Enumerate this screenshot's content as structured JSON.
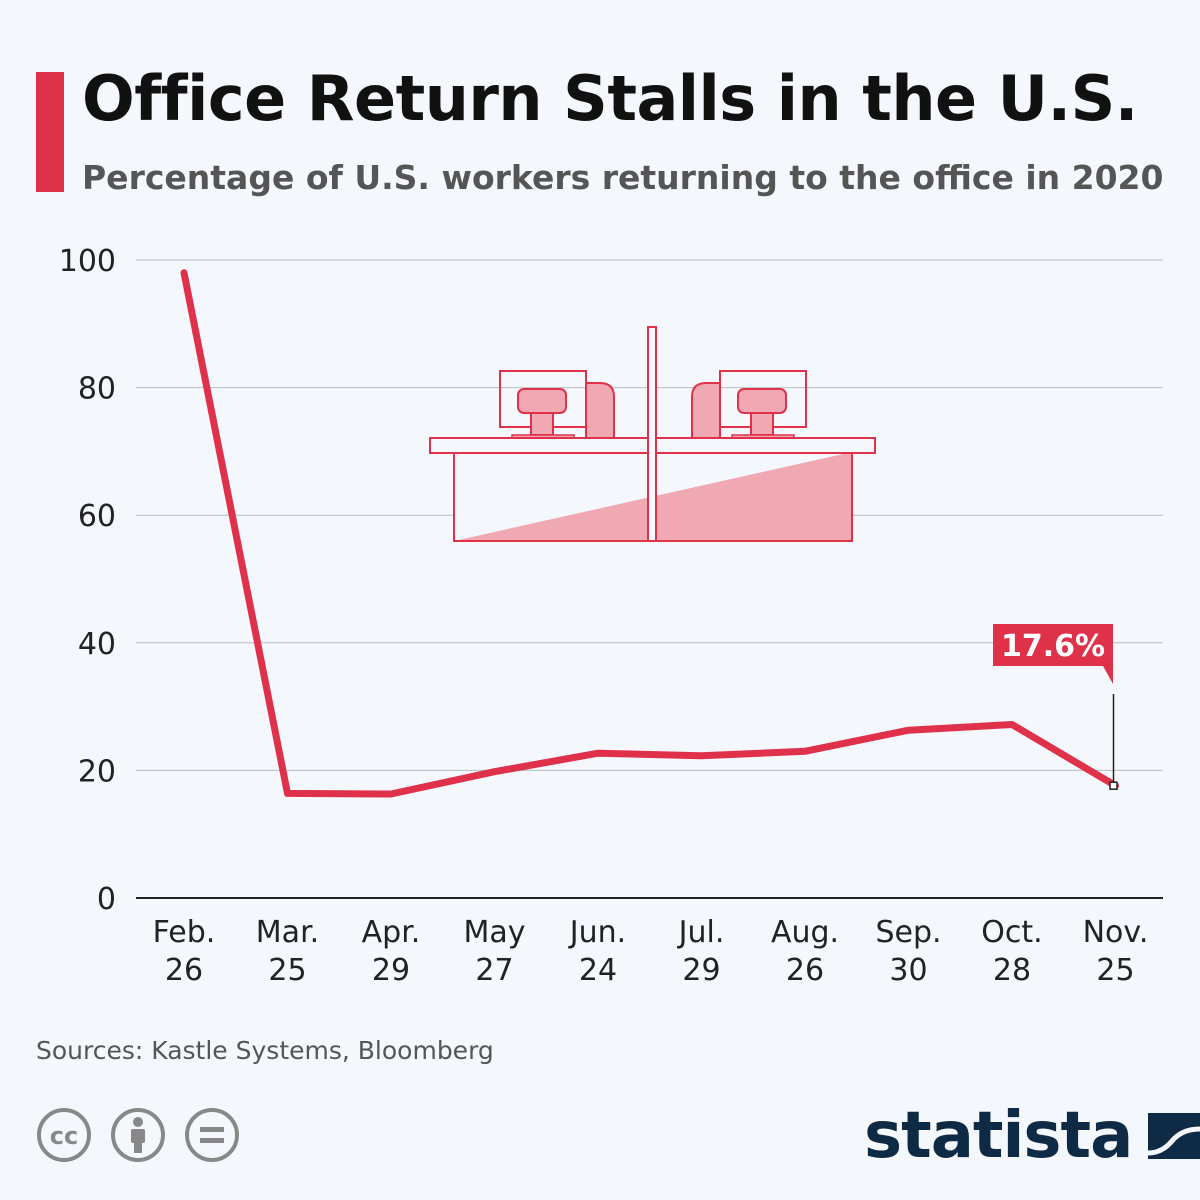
{
  "header": {
    "title": "Office Return Stalls in the U.S.",
    "subtitle": "Percentage of U.S. workers returning to the office in 2020"
  },
  "colors": {
    "accent": "#e0314b",
    "illustration_fill": "#f0a9b3",
    "grid": "#b8bdc4",
    "axis": "#222222",
    "brand": "#0f2a45",
    "icon_gray": "#888888"
  },
  "chart_data": {
    "type": "line",
    "categories": [
      "Feb.\n26",
      "Mar.\n25",
      "Apr.\n29",
      "May\n27",
      "Jun.\n24",
      "Jul.\n29",
      "Aug.\n26",
      "Sep.\n30",
      "Oct.\n28",
      "Nov.\n25"
    ],
    "series": [
      {
        "values": [
          98,
          16.4,
          16.3,
          19.8,
          22.7,
          22.3,
          23.0,
          26.3,
          27.2,
          17.6
        ]
      }
    ],
    "ylim": [
      0,
      100
    ],
    "yticks": [
      0,
      20,
      40,
      60,
      80,
      100
    ],
    "grid": true,
    "annotation": {
      "label": "17.6%",
      "index": 9
    }
  },
  "illustration": {
    "name": "office-desks",
    "icon": "desk-with-computers-icon"
  },
  "footer": {
    "source": "Sources: Kastle Systems, Bloomberg",
    "license_icons": [
      "cc-icon",
      "attribution-icon",
      "no-derivatives-icon"
    ],
    "cc_text": "cc",
    "brand": "statista"
  }
}
